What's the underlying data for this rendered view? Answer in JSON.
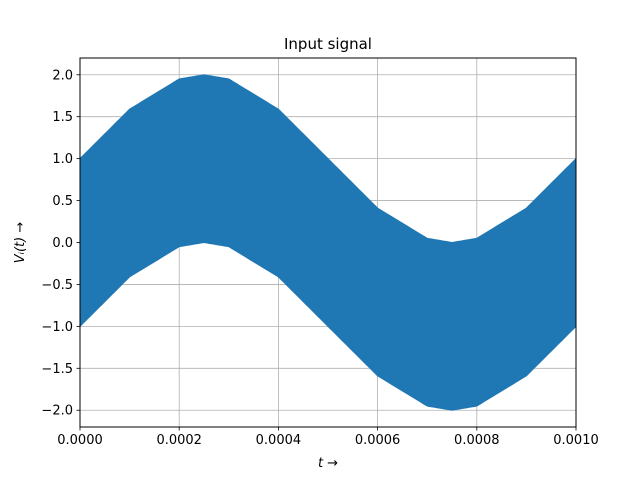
{
  "chart_data": {
    "type": "area",
    "title": "Input signal",
    "xlabel": "t →",
    "ylabel": "Vᵢ(t) →",
    "xlim": [
      0,
      0.001
    ],
    "ylim": [
      -2.2,
      2.2
    ],
    "grid": true,
    "xticks": [
      "0.0000",
      "0.0002",
      "0.0004",
      "0.0006",
      "0.0008",
      "0.0010"
    ],
    "xtick_values": [
      0,
      0.0002,
      0.0004,
      0.0006,
      0.0008,
      0.001
    ],
    "yticks": [
      "−2.0",
      "−1.5",
      "−1.0",
      "−0.5",
      "0.0",
      "0.5",
      "1.0",
      "1.5",
      "2.0"
    ],
    "ytick_values": [
      -2.0,
      -1.5,
      -1.0,
      -0.5,
      0.0,
      0.5,
      1.0,
      1.5,
      2.0
    ],
    "series": [
      {
        "color": "#1f77b4",
        "x": [
          0,
          0.0001,
          0.0002,
          0.00025,
          0.0003,
          0.0004,
          0.0005,
          0.0006,
          0.0007,
          0.00075,
          0.0008,
          0.0009,
          0.001
        ],
        "upper": [
          1.0,
          1.59,
          1.95,
          2.0,
          1.95,
          1.59,
          1.0,
          0.41,
          0.05,
          0.0,
          0.05,
          0.41,
          1.0
        ],
        "lower": [
          -1.0,
          -0.41,
          -0.05,
          0.0,
          -0.05,
          -0.41,
          -1.0,
          -1.59,
          -1.95,
          -2.0,
          -1.95,
          -1.59,
          -1.0
        ]
      }
    ]
  }
}
